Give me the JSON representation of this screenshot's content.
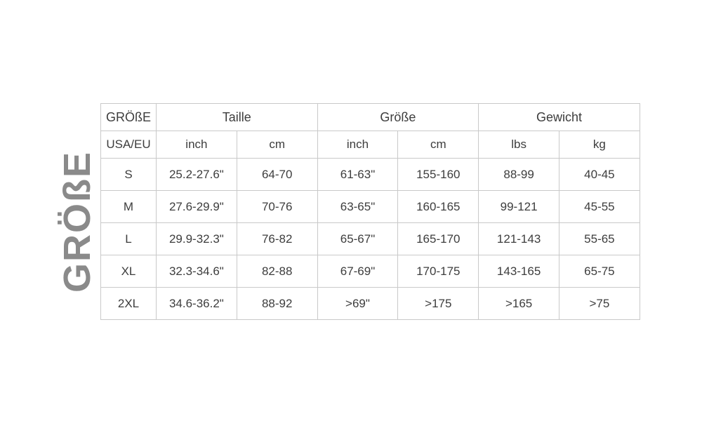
{
  "page": {
    "background": "#ffffff"
  },
  "vertical_label": {
    "text": "GRÖßE",
    "color": "#8a8a8a"
  },
  "table": {
    "border_color": "#c9c9c9",
    "text_color": "#3d3d3d",
    "group_headers": [
      "GRÖßE",
      "Taille",
      "Größe",
      "Gewicht"
    ],
    "unit_headers": [
      "USA/EU",
      "inch",
      "cm",
      "inch",
      "cm",
      "lbs",
      "kg"
    ],
    "rows": [
      [
        "S",
        "25.2-27.6\"",
        "64-70",
        "61-63\"",
        "155-160",
        "88-99",
        "40-45"
      ],
      [
        "M",
        "27.6-29.9\"",
        "70-76",
        "63-65\"",
        "160-165",
        "99-121",
        "45-55"
      ],
      [
        "L",
        "29.9-32.3\"",
        "76-82",
        "65-67\"",
        "165-170",
        "121-143",
        "55-65"
      ],
      [
        "XL",
        "32.3-34.6\"",
        "82-88",
        "67-69\"",
        "170-175",
        "143-165",
        "65-75"
      ],
      [
        "2XL",
        "34.6-36.2\"",
        "88-92",
        ">69\"",
        ">175",
        ">165",
        ">75"
      ]
    ]
  },
  "chart_data": {
    "type": "table",
    "title": "GRÖßE",
    "column_groups": [
      {
        "label": "GRÖßE",
        "span": 1
      },
      {
        "label": "Taille",
        "span": 2
      },
      {
        "label": "Größe",
        "span": 2
      },
      {
        "label": "Gewicht",
        "span": 2
      }
    ],
    "columns": [
      "USA/EU",
      "Taille inch",
      "Taille cm",
      "Größe inch",
      "Größe cm",
      "Gewicht lbs",
      "Gewicht kg"
    ],
    "rows": [
      [
        "S",
        "25.2-27.6\"",
        "64-70",
        "61-63\"",
        "155-160",
        "88-99",
        "40-45"
      ],
      [
        "M",
        "27.6-29.9\"",
        "70-76",
        "63-65\"",
        "160-165",
        "99-121",
        "45-55"
      ],
      [
        "L",
        "29.9-32.3\"",
        "76-82",
        "65-67\"",
        "165-170",
        "121-143",
        "55-65"
      ],
      [
        "XL",
        "32.3-34.6\"",
        "82-88",
        "67-69\"",
        "170-175",
        "143-165",
        "65-75"
      ],
      [
        "2XL",
        "34.6-36.2\"",
        "88-92",
        ">69\"",
        ">175",
        ">165",
        ">75"
      ]
    ]
  }
}
